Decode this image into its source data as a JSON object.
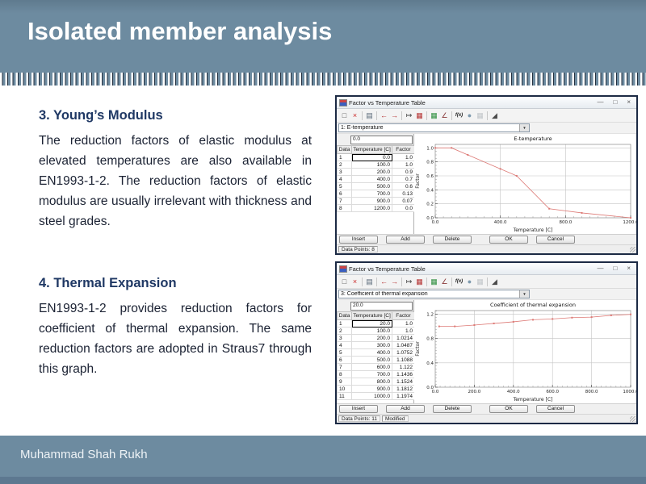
{
  "slide": {
    "title": "Isolated member analysis",
    "footer_name": "Muhammad Shah Rukh"
  },
  "colors": {
    "band_blue": "#6d8ba0",
    "band_blue_dark": "#5d7890",
    "heading_blue": "#1f3864",
    "body_text": "#1b2233",
    "chart_line": "#dd7a76"
  },
  "icons": {
    "dropdown_arrow": "▼"
  },
  "window_controls": [
    {
      "name": "minimize-button",
      "glyph": "—"
    },
    {
      "name": "maximize-button",
      "glyph": "□"
    },
    {
      "name": "close-button",
      "glyph": "×"
    }
  ],
  "dialog_toolbar": [
    {
      "name": "new-table-icon",
      "glyph": "□",
      "color": "#555555"
    },
    {
      "name": "delete-table-icon",
      "glyph": "×",
      "color": "#cc2a2a"
    },
    {
      "sep": true
    },
    {
      "name": "copy-icon",
      "glyph": "▤",
      "color": "#5a6a7a"
    },
    {
      "sep": true
    },
    {
      "name": "import-icon",
      "glyph": "←",
      "color": "#b53333"
    },
    {
      "name": "export-icon",
      "glyph": "→",
      "color": "#b53333"
    },
    {
      "sep": true
    },
    {
      "name": "append-row-icon",
      "glyph": "↦",
      "color": "#444444"
    },
    {
      "name": "clear-table-icon",
      "glyph": "▦",
      "color": "#b53333"
    },
    {
      "sep": true
    },
    {
      "name": "chart-type-icon",
      "glyph": "▦",
      "color": "#2f8f3f"
    },
    {
      "name": "axis-scale-icon",
      "glyph": "∠",
      "color": "#8a3a3a"
    },
    {
      "sep": true
    },
    {
      "name": "function-icon",
      "glyph": "f(x)",
      "color": "#222222",
      "fx": true
    },
    {
      "name": "globe-icon",
      "glyph": "●",
      "color": "#7e9aae"
    },
    {
      "name": "plot-options-icon",
      "glyph": "▦",
      "color": "#c2c6ca"
    },
    {
      "sep": true
    },
    {
      "name": "tools-icon",
      "glyph": "◢",
      "color": "#4a4a4a"
    }
  ],
  "sections": [
    {
      "heading": "3. Young’s Modulus",
      "body": "The reduction factors of elastic modulus at elevated temperatures are also available in EN1993-1-2. The reduction factors of elastic modulus are usually irrelevant with thickness and steel grades."
    },
    {
      "heading": "4. Thermal Expansion",
      "body": "EN1993-1-2 provides reduction factors for coefficient of thermal expansion. The same reduction factors are adopted in Straus7 through this graph."
    }
  ],
  "dialogs": [
    {
      "title": "Factor vs Temperature Table",
      "combo_value": "1: E-temperature",
      "cell_edit_value": "0.0",
      "columns": [
        "Data",
        "Temperature [C]",
        "Factor"
      ],
      "rows": [
        [
          "1",
          "0.0",
          "1.0"
        ],
        [
          "2",
          "100.0",
          "1.0"
        ],
        [
          "3",
          "200.0",
          "0.9"
        ],
        [
          "4",
          "400.0",
          "0.7"
        ],
        [
          "5",
          "500.0",
          "0.6"
        ],
        [
          "6",
          "700.0",
          "0.13"
        ],
        [
          "7",
          "900.0",
          "0.07"
        ],
        [
          "8",
          "1200.0",
          "0.0"
        ]
      ],
      "selected": [
        0,
        1
      ],
      "buttons": [
        "Insert",
        "Add",
        "Delete",
        "OK",
        "Cancel"
      ],
      "status_cells": [
        "Data Points: 8"
      ]
    },
    {
      "title": "Factor vs Temperature Table",
      "combo_value": "3: Coefficient of thermal expansion",
      "cell_edit_value": "20.0",
      "columns": [
        "Data",
        "Temperature [C]",
        "Factor"
      ],
      "rows": [
        [
          "1",
          "20.0",
          "1.0"
        ],
        [
          "2",
          "100.0",
          "1.0"
        ],
        [
          "3",
          "200.0",
          "1.0214"
        ],
        [
          "4",
          "300.0",
          "1.0487"
        ],
        [
          "5",
          "400.0",
          "1.0752"
        ],
        [
          "6",
          "500.0",
          "1.1088"
        ],
        [
          "7",
          "600.0",
          "1.122"
        ],
        [
          "8",
          "700.0",
          "1.1436"
        ],
        [
          "9",
          "800.0",
          "1.1524"
        ],
        [
          "10",
          "900.0",
          "1.1812"
        ],
        [
          "11",
          "1000.0",
          "1.1974"
        ]
      ],
      "selected": [
        0,
        1
      ],
      "buttons": [
        "Insert",
        "Add",
        "Delete",
        "OK",
        "Cancel"
      ],
      "status_cells": [
        "Data Points: 11",
        "Modified"
      ]
    }
  ],
  "chart_data": [
    {
      "type": "line",
      "title": "E-temperature",
      "xlabel": "Temperature [C]",
      "ylabel": "Factor",
      "x": [
        0,
        100,
        200,
        400,
        500,
        700,
        900,
        1200
      ],
      "y": [
        1.0,
        1.0,
        0.9,
        0.7,
        0.6,
        0.13,
        0.07,
        0.0
      ],
      "xlim": [
        0,
        1200
      ],
      "ylim": [
        0,
        1.05
      ],
      "xticks": [
        0,
        400,
        800,
        1200
      ],
      "xtick_labels": [
        "0.0",
        "400.0",
        "800.0",
        "1200.0"
      ],
      "yticks": [
        0,
        0.2,
        0.4,
        0.6,
        0.8,
        1.0
      ],
      "ytick_labels": [
        "0.0",
        "0.2",
        "0.4",
        "0.6",
        "0.8",
        "1.0"
      ],
      "x_minor_step": 50,
      "y_minor_step": 0.05,
      "grid": true,
      "legend": null,
      "line_color": "#dd7a76"
    },
    {
      "type": "line",
      "title": "Coefficient of thermal expansion",
      "xlabel": "Temperature [C]",
      "ylabel": "Factor",
      "x": [
        20,
        100,
        200,
        300,
        400,
        500,
        600,
        700,
        800,
        900,
        1000
      ],
      "y": [
        1.0,
        1.0,
        1.0214,
        1.0487,
        1.0752,
        1.1088,
        1.122,
        1.1436,
        1.1524,
        1.1812,
        1.1974
      ],
      "xlim": [
        0,
        1000
      ],
      "ylim": [
        0,
        1.26
      ],
      "xticks": [
        0,
        200,
        400,
        600,
        800,
        1000
      ],
      "xtick_labels": [
        "0.0",
        "200.0",
        "400.0",
        "600.0",
        "800.0",
        "1000.0"
      ],
      "yticks": [
        0,
        0.4,
        0.8,
        1.2
      ],
      "ytick_labels": [
        "0.0",
        "0.4",
        "0.8",
        "1.2"
      ],
      "x_minor_step": 25,
      "y_minor_step": 0.05,
      "grid": true,
      "legend": null,
      "line_color": "#dd7a76"
    }
  ]
}
